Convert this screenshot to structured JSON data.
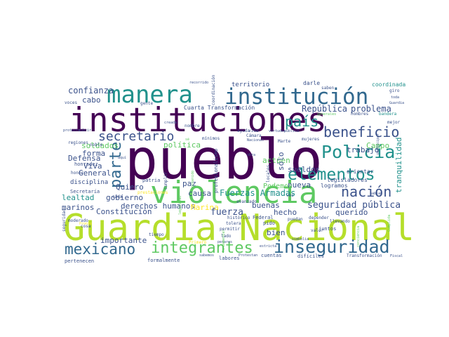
{
  "palette": {
    "dark": "#440154",
    "indigo": "#3b528b",
    "teal": "#21918c",
    "green": "#5ec962",
    "lime": "#b5de2b",
    "yellow": "#fde725"
  },
  "words": [
    {
      "text": "pueblo",
      "color": "#440154"
    },
    {
      "text": "Guardia Nacional",
      "color": "#b5de2b"
    },
    {
      "text": "instituciones",
      "color": "#440154"
    },
    {
      "text": "violencia",
      "color": "#5ec962"
    },
    {
      "text": "manera",
      "color": "#21918c"
    },
    {
      "text": "institución",
      "color": "#31688e"
    },
    {
      "text": "inseguridad",
      "color": "#31688e"
    },
    {
      "text": "integrantes",
      "color": "#5ec962"
    },
    {
      "text": "mexicano",
      "color": "#31688e"
    },
    {
      "text": "parte",
      "color": "#31688e"
    },
    {
      "text": "Policía",
      "color": "#21918c"
    },
    {
      "text": "elementos",
      "color": "#21918c"
    },
    {
      "text": "país",
      "color": "#21918c"
    },
    {
      "text": "beneficio",
      "color": "#3b528b"
    },
    {
      "text": "nación",
      "color": "#3b528b"
    },
    {
      "text": "secretario",
      "color": "#3b528b"
    },
    {
      "text": "seguridad pública",
      "color": "#3b528b"
    },
    {
      "text": "Fuerzas Armadas",
      "color": "#21918c"
    },
    {
      "text": "confianza",
      "color": "#3b528b"
    },
    {
      "text": "cabo",
      "color": "#3b528b"
    },
    {
      "text": "República",
      "color": "#3b528b"
    },
    {
      "text": "problema",
      "color": "#3b528b"
    },
    {
      "text": "General",
      "color": "#3b528b"
    },
    {
      "text": "Defensa",
      "color": "#3b528b"
    },
    {
      "text": "soldados",
      "color": "#5ec962"
    },
    {
      "text": "forma",
      "color": "#3b528b"
    },
    {
      "text": "Viva",
      "color": "#3b528b"
    },
    {
      "text": "lealtad",
      "color": "#21918c"
    },
    {
      "text": "marinos",
      "color": "#3b528b"
    },
    {
      "text": "gobierno",
      "color": "#3b528b"
    },
    {
      "text": "derechos humanos",
      "color": "#3b528b"
    },
    {
      "text": "importante",
      "color": "#3b528b"
    },
    {
      "text": "Constitución",
      "color": "#3b528b"
    },
    {
      "text": "Marina",
      "color": "#fde725"
    },
    {
      "text": "fuerza",
      "color": "#3b528b"
    },
    {
      "text": "hecho",
      "color": "#3b528b"
    },
    {
      "text": "buenas",
      "color": "#3b528b"
    },
    {
      "text": "querido",
      "color": "#3b528b"
    },
    {
      "text": "bien",
      "color": "#3b528b"
    },
    {
      "text": "causa",
      "color": "#3b528b"
    },
    {
      "text": "paz",
      "color": "#3b528b"
    },
    {
      "text": "Quiero",
      "color": "#3b528b"
    },
    {
      "text": "política",
      "color": "#5ec962"
    },
    {
      "text": "Campo",
      "color": "#5ec962"
    },
    {
      "text": "trabajo",
      "color": "#3b528b"
    },
    {
      "text": "sueldos",
      "color": "#3b528b"
    },
    {
      "text": "nueva",
      "color": "#3b528b"
    },
    {
      "text": "actúen",
      "color": "#5ec962"
    },
    {
      "text": "Podemos",
      "color": "#5ec962"
    },
    {
      "text": "sólo",
      "color": "#3b528b"
    },
    {
      "text": "tranquilidad",
      "color": "#21918c"
    },
    {
      "text": "territorio",
      "color": "#3b528b"
    },
    {
      "text": "darle",
      "color": "#3b528b"
    },
    {
      "text": "coordinada",
      "color": "#21918c"
    },
    {
      "text": "Cuarta Transformación",
      "color": "#3b528b"
    },
    {
      "text": "disciplina",
      "color": "#3b528b"
    },
    {
      "text": "honradez",
      "color": "#3b528b"
    },
    {
      "text": "orientar",
      "color": "#3b528b"
    },
    {
      "text": "legisladores",
      "color": "#3b528b"
    },
    {
      "text": "logramos",
      "color": "#3b528b"
    },
    {
      "text": "patria",
      "color": "#3b528b"
    },
    {
      "text": "profesionalismo",
      "color": "#3b528b"
    },
    {
      "text": "Federal",
      "color": "#3b528b"
    },
    {
      "text": "pido",
      "color": "#3b528b"
    },
    {
      "text": "juntos",
      "color": "#3b528b"
    },
    {
      "text": "pertenecen",
      "color": "#3b528b"
    },
    {
      "text": "formalmente",
      "color": "#3b528b"
    },
    {
      "text": "labores",
      "color": "#3b528b"
    },
    {
      "text": "cuentas",
      "color": "#3b528b"
    },
    {
      "text": "difíciles",
      "color": "#3b528b"
    },
    {
      "text": "Transformación",
      "color": "#3b528b"
    },
    {
      "text": "pertenecen",
      "color": "#3b528b"
    },
    {
      "text": "Secretaría",
      "color": "#3b528b"
    },
    {
      "text": "nombre",
      "color": "#3b528b"
    },
    {
      "text": "ayuda",
      "color": "#3b528b"
    },
    {
      "text": "Cámara",
      "color": "#3b528b"
    },
    {
      "text": "mejor",
      "color": "#3b528b"
    },
    {
      "text": "hombres",
      "color": "#3b528b"
    },
    {
      "text": "bandera",
      "color": "#21918c"
    },
    {
      "text": "saben",
      "color": "#3b528b"
    },
    {
      "text": "giro",
      "color": "#3b528b"
    },
    {
      "text": "coordinación",
      "color": "#3b528b"
    },
    {
      "text": "honor",
      "color": "#3b528b"
    },
    {
      "text": "noble",
      "color": "#3b528b"
    },
    {
      "text": "cumplir",
      "color": "#3b528b"
    },
    {
      "text": "vida",
      "color": "#3b528b"
    },
    {
      "text": "mujeres",
      "color": "#3b528b"
    },
    {
      "text": "locales",
      "color": "#3b528b"
    },
    {
      "text": "Marte",
      "color": "#3b528b"
    },
    {
      "text": "histórico",
      "color": "#3b528b"
    },
    {
      "text": "lado",
      "color": "#3b528b"
    },
    {
      "text": "permitir",
      "color": "#3b528b"
    },
    {
      "text": "puedan",
      "color": "#3b528b"
    },
    {
      "text": "depender",
      "color": "#3b528b"
    },
    {
      "text": "llevando",
      "color": "#3b528b"
    },
    {
      "text": "valor",
      "color": "#3b528b"
    },
    {
      "text": "seguridad",
      "color": "#3b528b"
    },
    {
      "text": "moderado",
      "color": "#3b528b"
    },
    {
      "text": "cosa",
      "color": "#3b528b"
    },
    {
      "text": "cada",
      "color": "#3b528b"
    },
    {
      "text": "vez",
      "color": "#3b528b"
    },
    {
      "text": "gente",
      "color": "#3b528b"
    },
    {
      "text": "voces",
      "color": "#3b528b"
    },
    {
      "text": "avanzado",
      "color": "#3b528b"
    },
    {
      "text": "mínimos",
      "color": "#3b528b"
    },
    {
      "text": "prestaciones",
      "color": "#fde725"
    },
    {
      "text": "regiones",
      "color": "#3b528b"
    },
    {
      "text": "tiempo",
      "color": "#3b528b"
    },
    {
      "text": "Primero",
      "color": "#fde725"
    },
    {
      "text": "tolera",
      "color": "#3b528b"
    },
    {
      "text": "pesares",
      "color": "#3b528b"
    },
    {
      "text": "simbolia",
      "color": "#3b528b"
    },
    {
      "text": "Protestan",
      "color": "#3b528b"
    },
    {
      "text": "estricta",
      "color": "#3b528b"
    },
    {
      "text": "Fiscal",
      "color": "#3b528b"
    },
    {
      "text": "sabemos",
      "color": "#3b528b"
    },
    {
      "text": "toda",
      "color": "#3b528b"
    },
    {
      "text": "Guardia",
      "color": "#3b528b"
    },
    {
      "text": "virtudes",
      "color": "#3b528b"
    },
    {
      "text": "pública",
      "color": "#3b528b"
    },
    {
      "text": "habían",
      "color": "#3b528b"
    },
    {
      "text": "Nacional",
      "color": "#3b528b"
    },
    {
      "text": "fundamental",
      "color": "#5ec962"
    },
    {
      "text": "generales",
      "color": "#5ec962"
    },
    {
      "text": "Pronto",
      "color": "#fde725"
    },
    {
      "text": "participar",
      "color": "#3b528b"
    },
    {
      "text": "conciencia",
      "color": "#5ec962"
    },
    {
      "text": "contenido",
      "color": "#5ec962"
    },
    {
      "text": "creada",
      "color": "#3b528b"
    },
    {
      "text": "legalidad",
      "color": "#5ec962"
    },
    {
      "text": "sé",
      "color": "#5ec962"
    },
    {
      "text": "Cumplida",
      "color": "#5ec962"
    },
    {
      "text": "aquí",
      "color": "#3b528b"
    },
    {
      "text": "obra",
      "color": "#3b528b"
    },
    {
      "text": "protesta",
      "color": "#3b528b"
    },
    {
      "text": "cubrir",
      "color": "#3b528b"
    },
    {
      "text": "recorrido",
      "color": "#3b528b"
    }
  ]
}
